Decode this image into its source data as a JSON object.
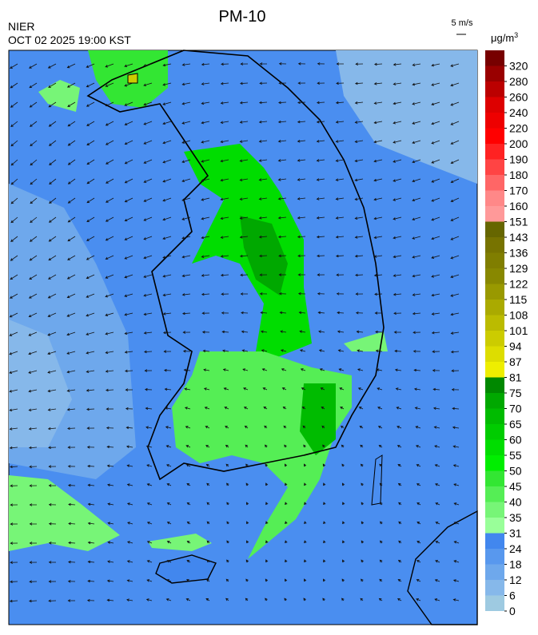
{
  "header": {
    "title": "PM-10",
    "agency": "NIER",
    "timestamp": "OCT 02 2025 19:00 KST",
    "wind_scale": "5 m/s"
  },
  "colorbar": {
    "unit": "μg/m",
    "unit_exponent": "3",
    "ticks": [
      0,
      6,
      12,
      18,
      24,
      31,
      35,
      40,
      45,
      50,
      55,
      60,
      65,
      70,
      75,
      81,
      87,
      94,
      101,
      108,
      115,
      122,
      129,
      136,
      143,
      151,
      160,
      170,
      180,
      190,
      200,
      220,
      240,
      260,
      280,
      320
    ],
    "colors": [
      "#9ecae1",
      "#86b8ea",
      "#6ea8ec",
      "#5898ee",
      "#4287ee",
      "#99ff99",
      "#77f577",
      "#55ee55",
      "#33e633",
      "#00ee00",
      "#00dd00",
      "#00cc00",
      "#00bb00",
      "#00a800",
      "#008800",
      "#eeee00",
      "#dddd00",
      "#cccc00",
      "#bbbb00",
      "#aaaa00",
      "#999900",
      "#888800",
      "#807e00",
      "#777300",
      "#666600",
      "#ff9999",
      "#ff8888",
      "#ff6666",
      "#ff4444",
      "#ff2222",
      "#ff0000",
      "#ee0000",
      "#dd0000",
      "#bb0000",
      "#990000",
      "#770000"
    ]
  }
}
